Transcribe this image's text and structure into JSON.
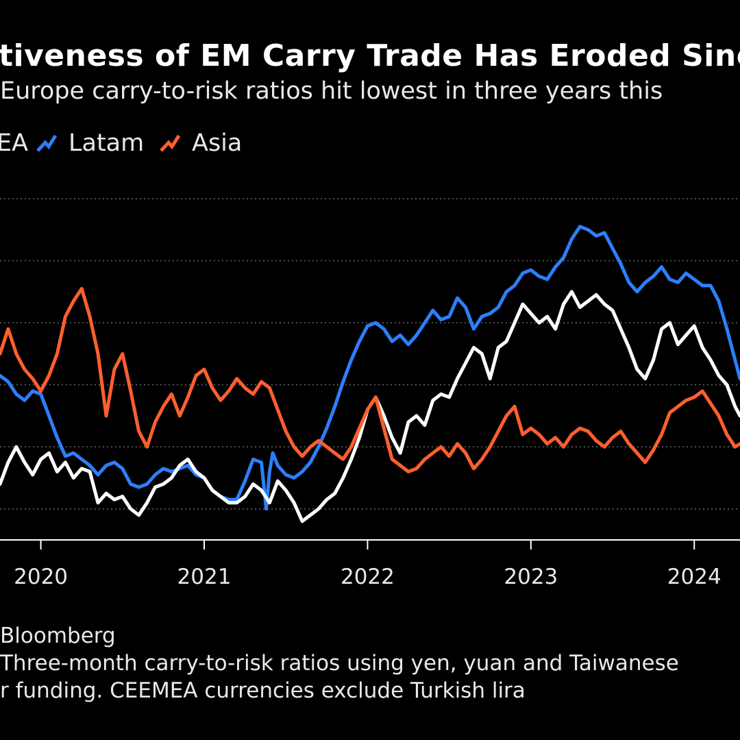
{
  "header": {
    "title": "tiveness of EM Carry Trade Has Eroded Sinc",
    "subtitle": "Europe carry-to-risk ratios hit lowest in three years this"
  },
  "legend": [
    {
      "label": "EA",
      "color": "#ffffff"
    },
    {
      "label": "Latam",
      "color": "#2d7ff9"
    },
    {
      "label": "Asia",
      "color": "#ff5f2e"
    }
  ],
  "chart_data": {
    "type": "line",
    "title": "tiveness of EM Carry Trade Has Eroded Sinc",
    "subtitle": "Europe carry-to-risk ratios hit lowest in three years this",
    "x_ticks": [
      "2020",
      "2021",
      "2022",
      "2023",
      "2024"
    ],
    "x_range": [
      2019.75,
      2024.28
    ],
    "y_range": [
      0.0,
      1.1
    ],
    "grid": "horizontal dotted",
    "series": [
      {
        "name": "Latam",
        "color": "#2d7ff9",
        "x": [
          2019.75,
          2019.8,
          2019.85,
          2019.9,
          2019.95,
          2020.0,
          2020.05,
          2020.1,
          2020.15,
          2020.2,
          2020.25,
          2020.3,
          2020.35,
          2020.4,
          2020.45,
          2020.5,
          2020.55,
          2020.6,
          2020.65,
          2020.7,
          2020.75,
          2020.8,
          2020.85,
          2020.9,
          2020.95,
          2021.0,
          2021.05,
          2021.1,
          2021.15,
          2021.2,
          2021.25,
          2021.3,
          2021.35,
          2021.38,
          2021.4,
          2021.42,
          2021.45,
          2021.5,
          2021.55,
          2021.6,
          2021.65,
          2021.7,
          2021.75,
          2021.8,
          2021.85,
          2021.9,
          2021.95,
          2022.0,
          2022.05,
          2022.1,
          2022.15,
          2022.2,
          2022.25,
          2022.3,
          2022.35,
          2022.4,
          2022.45,
          2022.5,
          2022.55,
          2022.6,
          2022.65,
          2022.7,
          2022.75,
          2022.8,
          2022.85,
          2022.9,
          2022.95,
          2023.0,
          2023.05,
          2023.1,
          2023.15,
          2023.2,
          2023.25,
          2023.3,
          2023.35,
          2023.4,
          2023.45,
          2023.5,
          2023.55,
          2023.6,
          2023.65,
          2023.7,
          2023.75,
          2023.8,
          2023.85,
          2023.9,
          2023.95,
          2024.0,
          2024.05,
          2024.1,
          2024.15,
          2024.2,
          2024.25,
          2024.28
        ],
        "y": [
          0.53,
          0.51,
          0.47,
          0.45,
          0.48,
          0.47,
          0.4,
          0.33,
          0.27,
          0.28,
          0.26,
          0.24,
          0.21,
          0.24,
          0.25,
          0.23,
          0.18,
          0.17,
          0.18,
          0.21,
          0.23,
          0.22,
          0.23,
          0.24,
          0.21,
          0.2,
          0.16,
          0.14,
          0.13,
          0.13,
          0.19,
          0.26,
          0.25,
          0.1,
          0.22,
          0.28,
          0.24,
          0.21,
          0.2,
          0.22,
          0.25,
          0.3,
          0.36,
          0.43,
          0.51,
          0.58,
          0.64,
          0.69,
          0.7,
          0.68,
          0.64,
          0.66,
          0.63,
          0.66,
          0.7,
          0.74,
          0.71,
          0.72,
          0.78,
          0.75,
          0.68,
          0.72,
          0.73,
          0.75,
          0.8,
          0.82,
          0.86,
          0.87,
          0.85,
          0.84,
          0.88,
          0.91,
          0.97,
          1.01,
          1.0,
          0.98,
          0.99,
          0.94,
          0.89,
          0.83,
          0.8,
          0.83,
          0.85,
          0.88,
          0.84,
          0.83,
          0.86,
          0.84,
          0.82,
          0.82,
          0.77,
          0.68,
          0.58,
          0.52
        ]
      },
      {
        "name": "EA",
        "color": "#ffffff",
        "x": [
          2019.75,
          2019.8,
          2019.85,
          2019.9,
          2019.95,
          2020.0,
          2020.05,
          2020.1,
          2020.15,
          2020.2,
          2020.25,
          2020.3,
          2020.35,
          2020.4,
          2020.45,
          2020.5,
          2020.55,
          2020.6,
          2020.65,
          2020.7,
          2020.75,
          2020.8,
          2020.85,
          2020.9,
          2020.95,
          2021.0,
          2021.05,
          2021.1,
          2021.15,
          2021.2,
          2021.25,
          2021.3,
          2021.35,
          2021.4,
          2021.45,
          2021.5,
          2021.55,
          2021.6,
          2021.65,
          2021.7,
          2021.75,
          2021.8,
          2021.85,
          2021.9,
          2021.95,
          2022.0,
          2022.05,
          2022.1,
          2022.15,
          2022.2,
          2022.25,
          2022.3,
          2022.35,
          2022.4,
          2022.45,
          2022.5,
          2022.55,
          2022.6,
          2022.65,
          2022.7,
          2022.75,
          2022.8,
          2022.85,
          2022.9,
          2022.95,
          2023.0,
          2023.05,
          2023.1,
          2023.15,
          2023.2,
          2023.25,
          2023.3,
          2023.35,
          2023.4,
          2023.45,
          2023.5,
          2023.55,
          2023.6,
          2023.65,
          2023.7,
          2023.75,
          2023.8,
          2023.85,
          2023.9,
          2023.95,
          2024.0,
          2024.05,
          2024.1,
          2024.15,
          2024.2,
          2024.25,
          2024.28
        ],
        "y": [
          0.18,
          0.25,
          0.3,
          0.25,
          0.21,
          0.26,
          0.28,
          0.22,
          0.25,
          0.2,
          0.23,
          0.22,
          0.12,
          0.15,
          0.13,
          0.14,
          0.1,
          0.08,
          0.12,
          0.17,
          0.18,
          0.2,
          0.24,
          0.26,
          0.22,
          0.2,
          0.16,
          0.14,
          0.12,
          0.12,
          0.14,
          0.18,
          0.16,
          0.12,
          0.19,
          0.16,
          0.12,
          0.06,
          0.08,
          0.1,
          0.13,
          0.15,
          0.2,
          0.26,
          0.33,
          0.42,
          0.46,
          0.4,
          0.33,
          0.28,
          0.38,
          0.4,
          0.37,
          0.45,
          0.47,
          0.46,
          0.52,
          0.57,
          0.62,
          0.6,
          0.52,
          0.62,
          0.64,
          0.7,
          0.76,
          0.73,
          0.7,
          0.72,
          0.68,
          0.76,
          0.8,
          0.75,
          0.77,
          0.79,
          0.76,
          0.74,
          0.68,
          0.62,
          0.55,
          0.52,
          0.58,
          0.68,
          0.7,
          0.63,
          0.66,
          0.69,
          0.62,
          0.58,
          0.53,
          0.5,
          0.43,
          0.4
        ]
      },
      {
        "name": "Asia",
        "color": "#ff5f2e",
        "x": [
          2019.75,
          2019.8,
          2019.85,
          2019.9,
          2019.95,
          2020.0,
          2020.05,
          2020.1,
          2020.15,
          2020.2,
          2020.25,
          2020.3,
          2020.35,
          2020.4,
          2020.45,
          2020.5,
          2020.55,
          2020.6,
          2020.65,
          2020.7,
          2020.75,
          2020.8,
          2020.85,
          2020.9,
          2020.95,
          2021.0,
          2021.05,
          2021.1,
          2021.15,
          2021.2,
          2021.25,
          2021.3,
          2021.35,
          2021.4,
          2021.45,
          2021.5,
          2021.55,
          2021.6,
          2021.65,
          2021.7,
          2021.75,
          2021.8,
          2021.85,
          2021.9,
          2021.95,
          2022.0,
          2022.05,
          2022.1,
          2022.15,
          2022.2,
          2022.25,
          2022.3,
          2022.35,
          2022.4,
          2022.45,
          2022.5,
          2022.55,
          2022.6,
          2022.65,
          2022.7,
          2022.75,
          2022.8,
          2022.85,
          2022.9,
          2022.95,
          2023.0,
          2023.05,
          2023.1,
          2023.15,
          2023.2,
          2023.25,
          2023.3,
          2023.35,
          2023.4,
          2023.45,
          2023.5,
          2023.55,
          2023.6,
          2023.65,
          2023.7,
          2023.75,
          2023.8,
          2023.85,
          2023.9,
          2023.95,
          2024.0,
          2024.05,
          2024.1,
          2024.15,
          2024.2,
          2024.25,
          2024.28
        ],
        "y": [
          0.6,
          0.68,
          0.6,
          0.55,
          0.52,
          0.48,
          0.53,
          0.6,
          0.72,
          0.77,
          0.81,
          0.72,
          0.6,
          0.4,
          0.55,
          0.6,
          0.48,
          0.35,
          0.3,
          0.38,
          0.43,
          0.47,
          0.4,
          0.46,
          0.53,
          0.55,
          0.49,
          0.45,
          0.48,
          0.52,
          0.49,
          0.47,
          0.51,
          0.49,
          0.42,
          0.35,
          0.3,
          0.27,
          0.3,
          0.32,
          0.3,
          0.28,
          0.26,
          0.3,
          0.36,
          0.42,
          0.46,
          0.36,
          0.26,
          0.24,
          0.22,
          0.23,
          0.26,
          0.28,
          0.3,
          0.27,
          0.31,
          0.28,
          0.23,
          0.26,
          0.3,
          0.35,
          0.4,
          0.43,
          0.34,
          0.36,
          0.34,
          0.31,
          0.33,
          0.3,
          0.34,
          0.36,
          0.35,
          0.32,
          0.3,
          0.33,
          0.35,
          0.31,
          0.28,
          0.25,
          0.29,
          0.34,
          0.41,
          0.43,
          0.45,
          0.46,
          0.48,
          0.44,
          0.4,
          0.34,
          0.3,
          0.31
        ]
      }
    ],
    "source": "Bloomberg",
    "note": "Three-month carry-to-risk ratios using yen, yuan and Taiwanese dollar funding. CEEMEA currencies exclude Turkish lira"
  },
  "footer": {
    "source": "Bloomberg",
    "note_line1": "Three-month carry-to-risk ratios using yen, yuan and Taiwanese",
    "note_line2": "r funding. CEEMEA currencies exclude Turkish lira"
  }
}
